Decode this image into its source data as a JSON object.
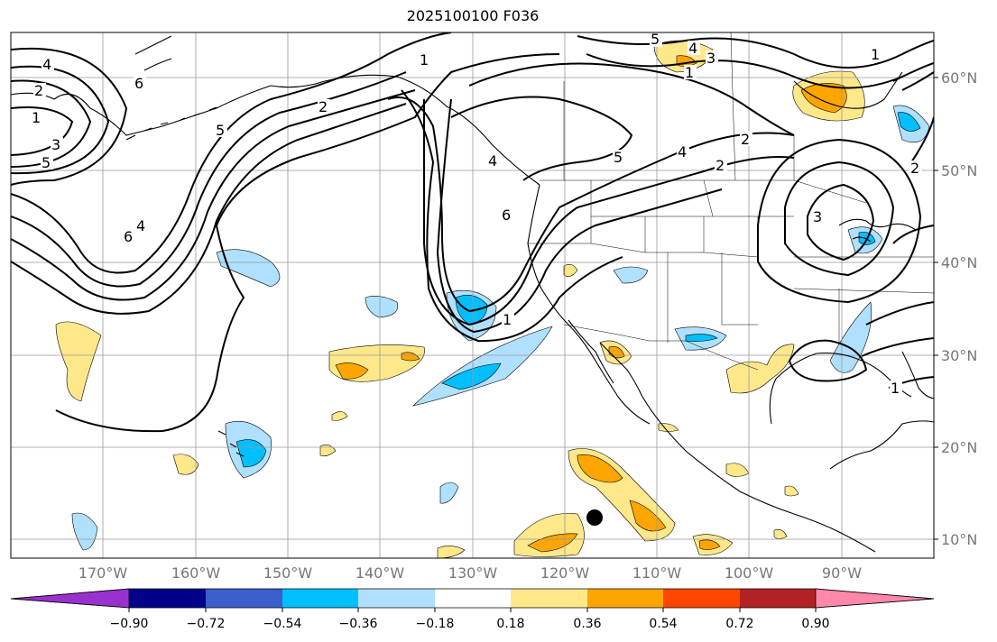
{
  "title": "2025100100 F036",
  "lat_labels": [
    "60°N",
    "50°N",
    "40°N",
    "30°N",
    "20°N",
    "10°N"
  ],
  "lon_labels": [
    "170°W",
    "160°W",
    "150°W",
    "140°W",
    "130°W",
    "120°W",
    "110°W",
    "100°W",
    "90°W"
  ],
  "colorbar": {
    "ticks": [
      "−0.90",
      "−0.72",
      "−0.54",
      "−0.36",
      "−0.18",
      "0.18",
      "0.36",
      "0.54",
      "0.72",
      "0.90"
    ],
    "colors": [
      "#9b30d0",
      "#00008b",
      "#3a5fcd",
      "#00bfff",
      "#b0e0ff",
      "#ffffff",
      "#ffe88a",
      "#ffa500",
      "#ff4500",
      "#b22222",
      "#ff88aa"
    ]
  },
  "contour_labels": [
    "4",
    "2",
    "1",
    "3",
    "5",
    "6",
    "4",
    "5",
    "2",
    "1",
    "6",
    "5",
    "4",
    "2",
    "4",
    "3",
    "5",
    "4",
    "2",
    "6",
    "1",
    "1",
    "2",
    "1",
    "3",
    "1"
  ],
  "fill_colors": {
    "light_blue": "#b0e0ff",
    "blue": "#00bfff",
    "light_yellow": "#ffe88a",
    "orange": "#ffa500"
  },
  "storm_marker": "storm-center"
}
